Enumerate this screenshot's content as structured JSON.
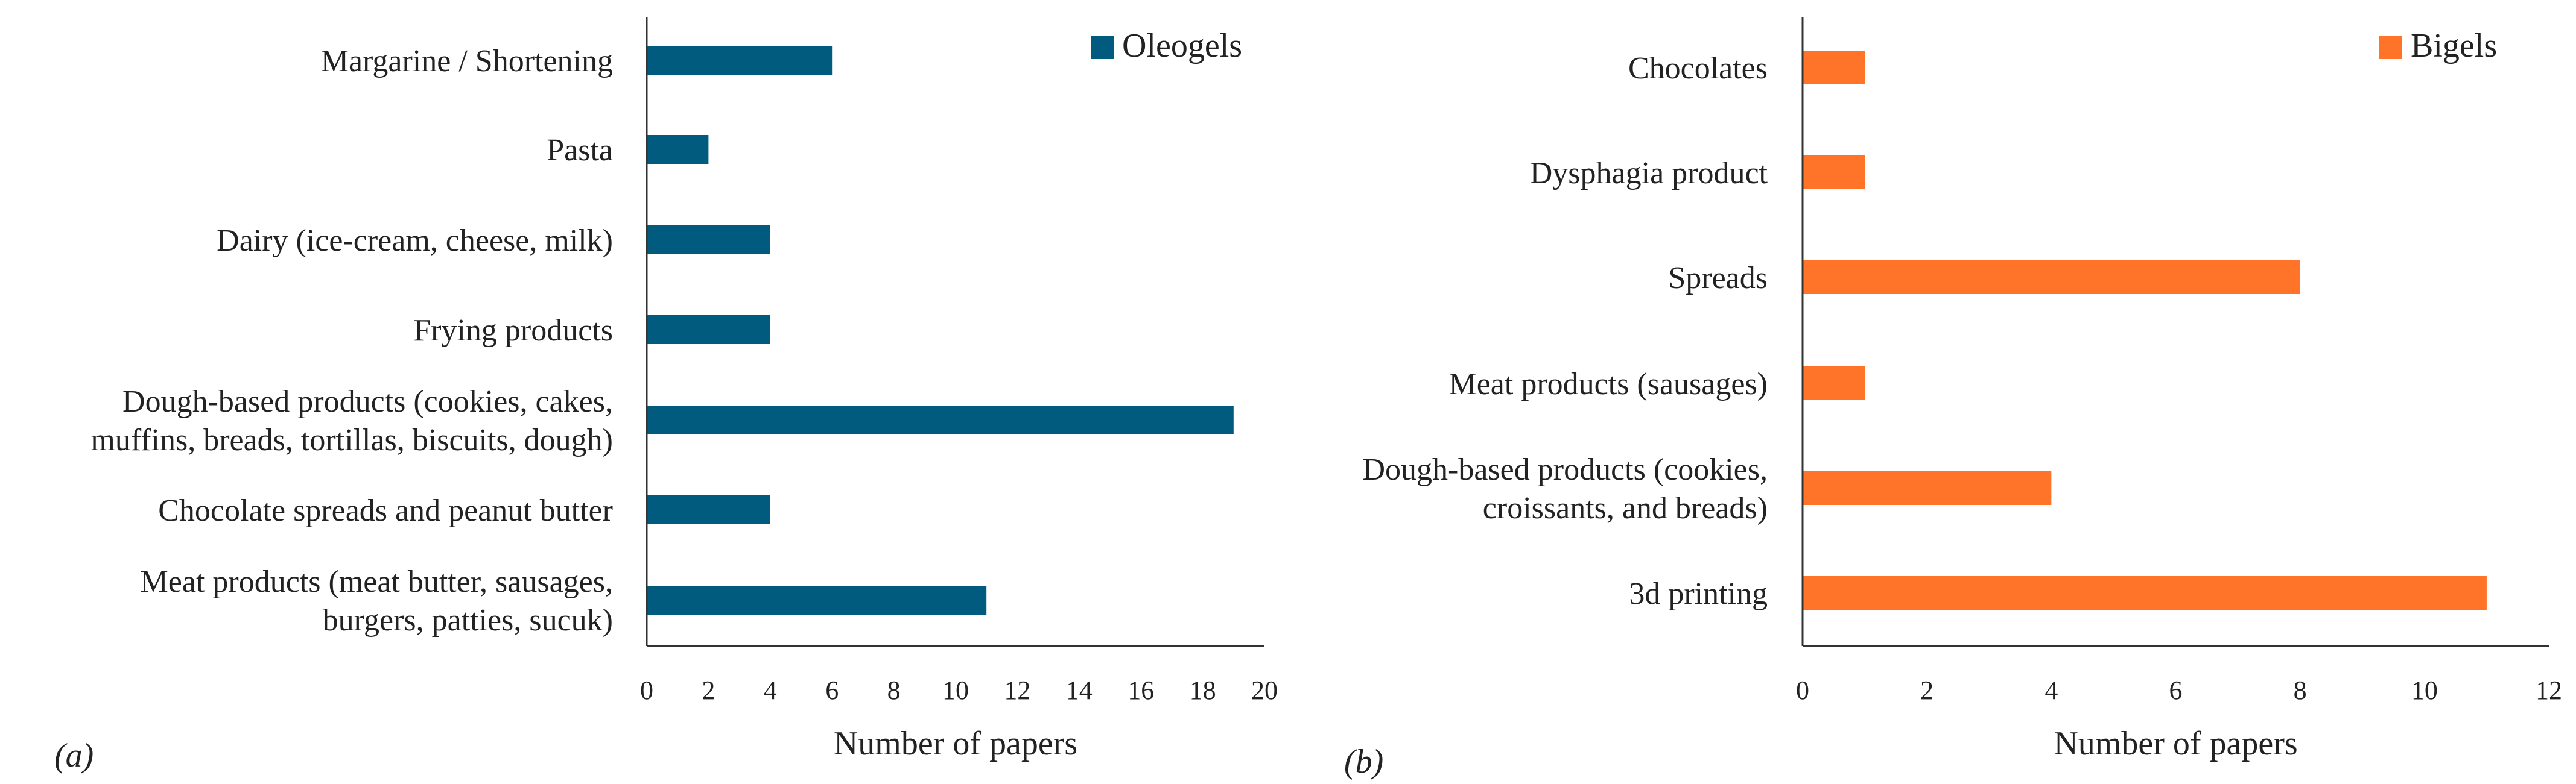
{
  "colors": {
    "oleogels": "#005b7f",
    "bigels": "#ff7428",
    "axis": "#333333",
    "text": "#222222"
  },
  "chart_data": [
    {
      "id": "a",
      "type": "bar",
      "orientation": "horizontal",
      "panel_label": "(a)",
      "legend": "Oleogels",
      "legend_position": "top-right",
      "xlabel": "Number of papers",
      "ylabel": "",
      "xlim": [
        0,
        20
      ],
      "xticks": [
        0,
        2,
        4,
        6,
        8,
        10,
        12,
        14,
        16,
        18,
        20
      ],
      "grid": false,
      "categories": [
        [
          "Margarine / Shortening"
        ],
        [
          "Pasta"
        ],
        [
          "Dairy (ice-cream, cheese, milk)"
        ],
        [
          "Frying products"
        ],
        [
          "Dough-based products (cookies, cakes,",
          "muffins, breads, tortillas, biscuits, dough)"
        ],
        [
          "Chocolate spreads and peanut butter"
        ],
        [
          "Meat products (meat butter, sausages,",
          "burgers, patties, sucuk)"
        ]
      ],
      "values": [
        6,
        2,
        4,
        4,
        19,
        4,
        11
      ]
    },
    {
      "id": "b",
      "type": "bar",
      "orientation": "horizontal",
      "panel_label": "(b)",
      "legend": "Bigels",
      "legend_position": "top-right",
      "xlabel": "Number of papers",
      "ylabel": "",
      "xlim": [
        0,
        12
      ],
      "xticks": [
        0,
        2,
        4,
        6,
        8,
        10,
        12
      ],
      "grid": false,
      "categories": [
        [
          "Chocolates"
        ],
        [
          "Dysphagia product"
        ],
        [
          "Spreads"
        ],
        [
          "Meat products (sausages)"
        ],
        [
          "Dough-based products (cookies,",
          "croissants, and breads)"
        ],
        [
          "3d printing"
        ]
      ],
      "values": [
        1,
        1,
        8,
        1,
        4,
        11
      ]
    }
  ]
}
